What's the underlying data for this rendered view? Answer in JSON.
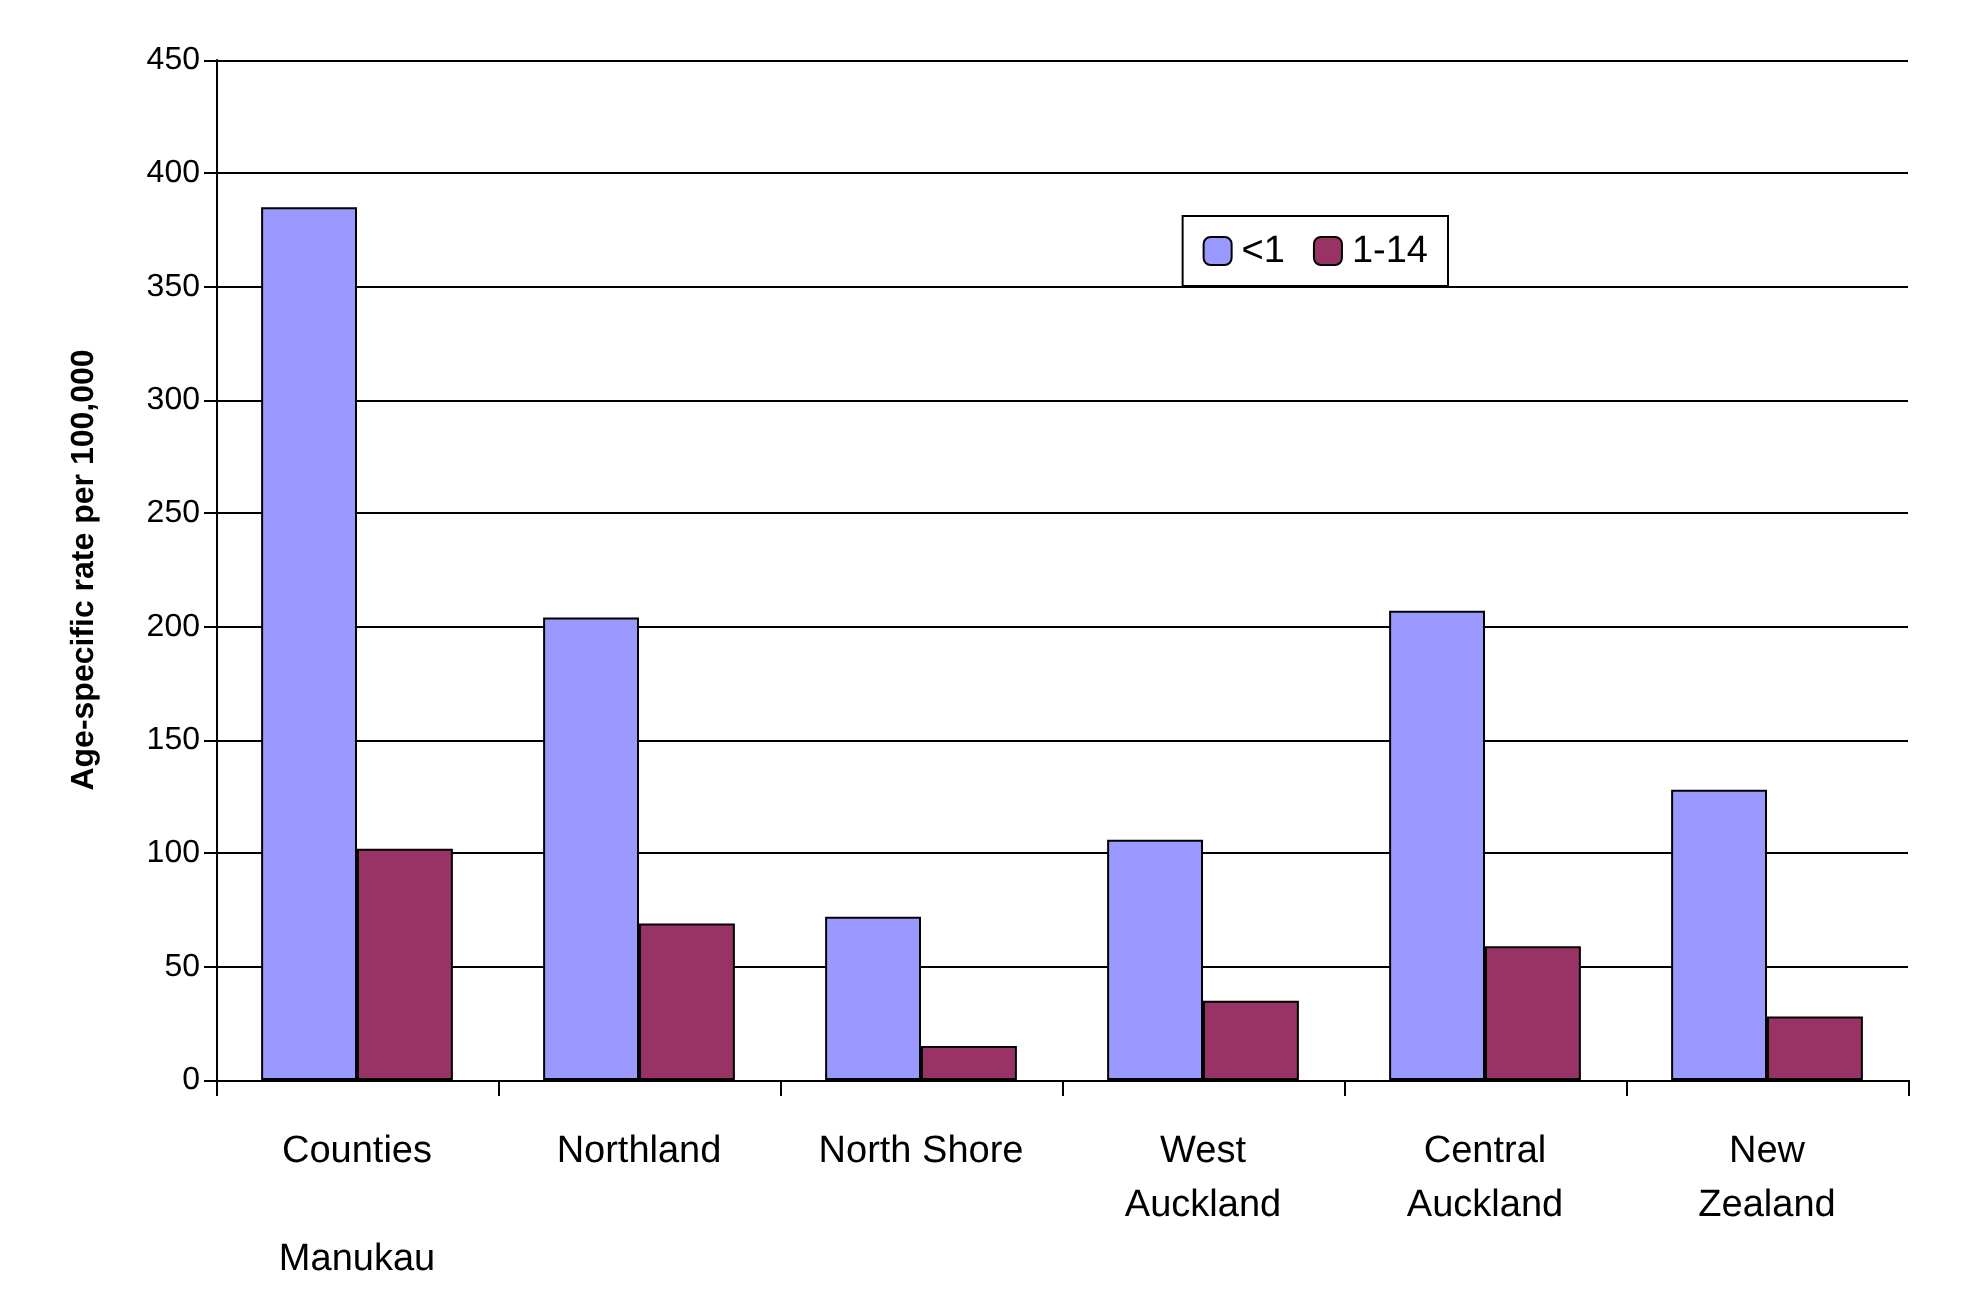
{
  "chart_data": {
    "type": "bar",
    "ylabel": "Age-specific rate per 100,000",
    "categories": [
      "Counties\n\nManukau",
      "Northland",
      "North Shore",
      "West\nAuckland",
      "Central\nAuckland",
      "New\nZealand"
    ],
    "series": [
      {
        "name": "<1",
        "color": "#9999ff",
        "values": [
          385,
          204,
          72,
          106,
          207,
          128
        ]
      },
      {
        "name": "1-14",
        "color": "#993366",
        "values": [
          102,
          69,
          15,
          35,
          59,
          28
        ]
      }
    ],
    "ylim": [
      0,
      450
    ],
    "yticks": [
      0,
      50,
      100,
      150,
      200,
      250,
      300,
      350,
      400,
      450
    ],
    "grid": "y",
    "legend": "top right"
  }
}
